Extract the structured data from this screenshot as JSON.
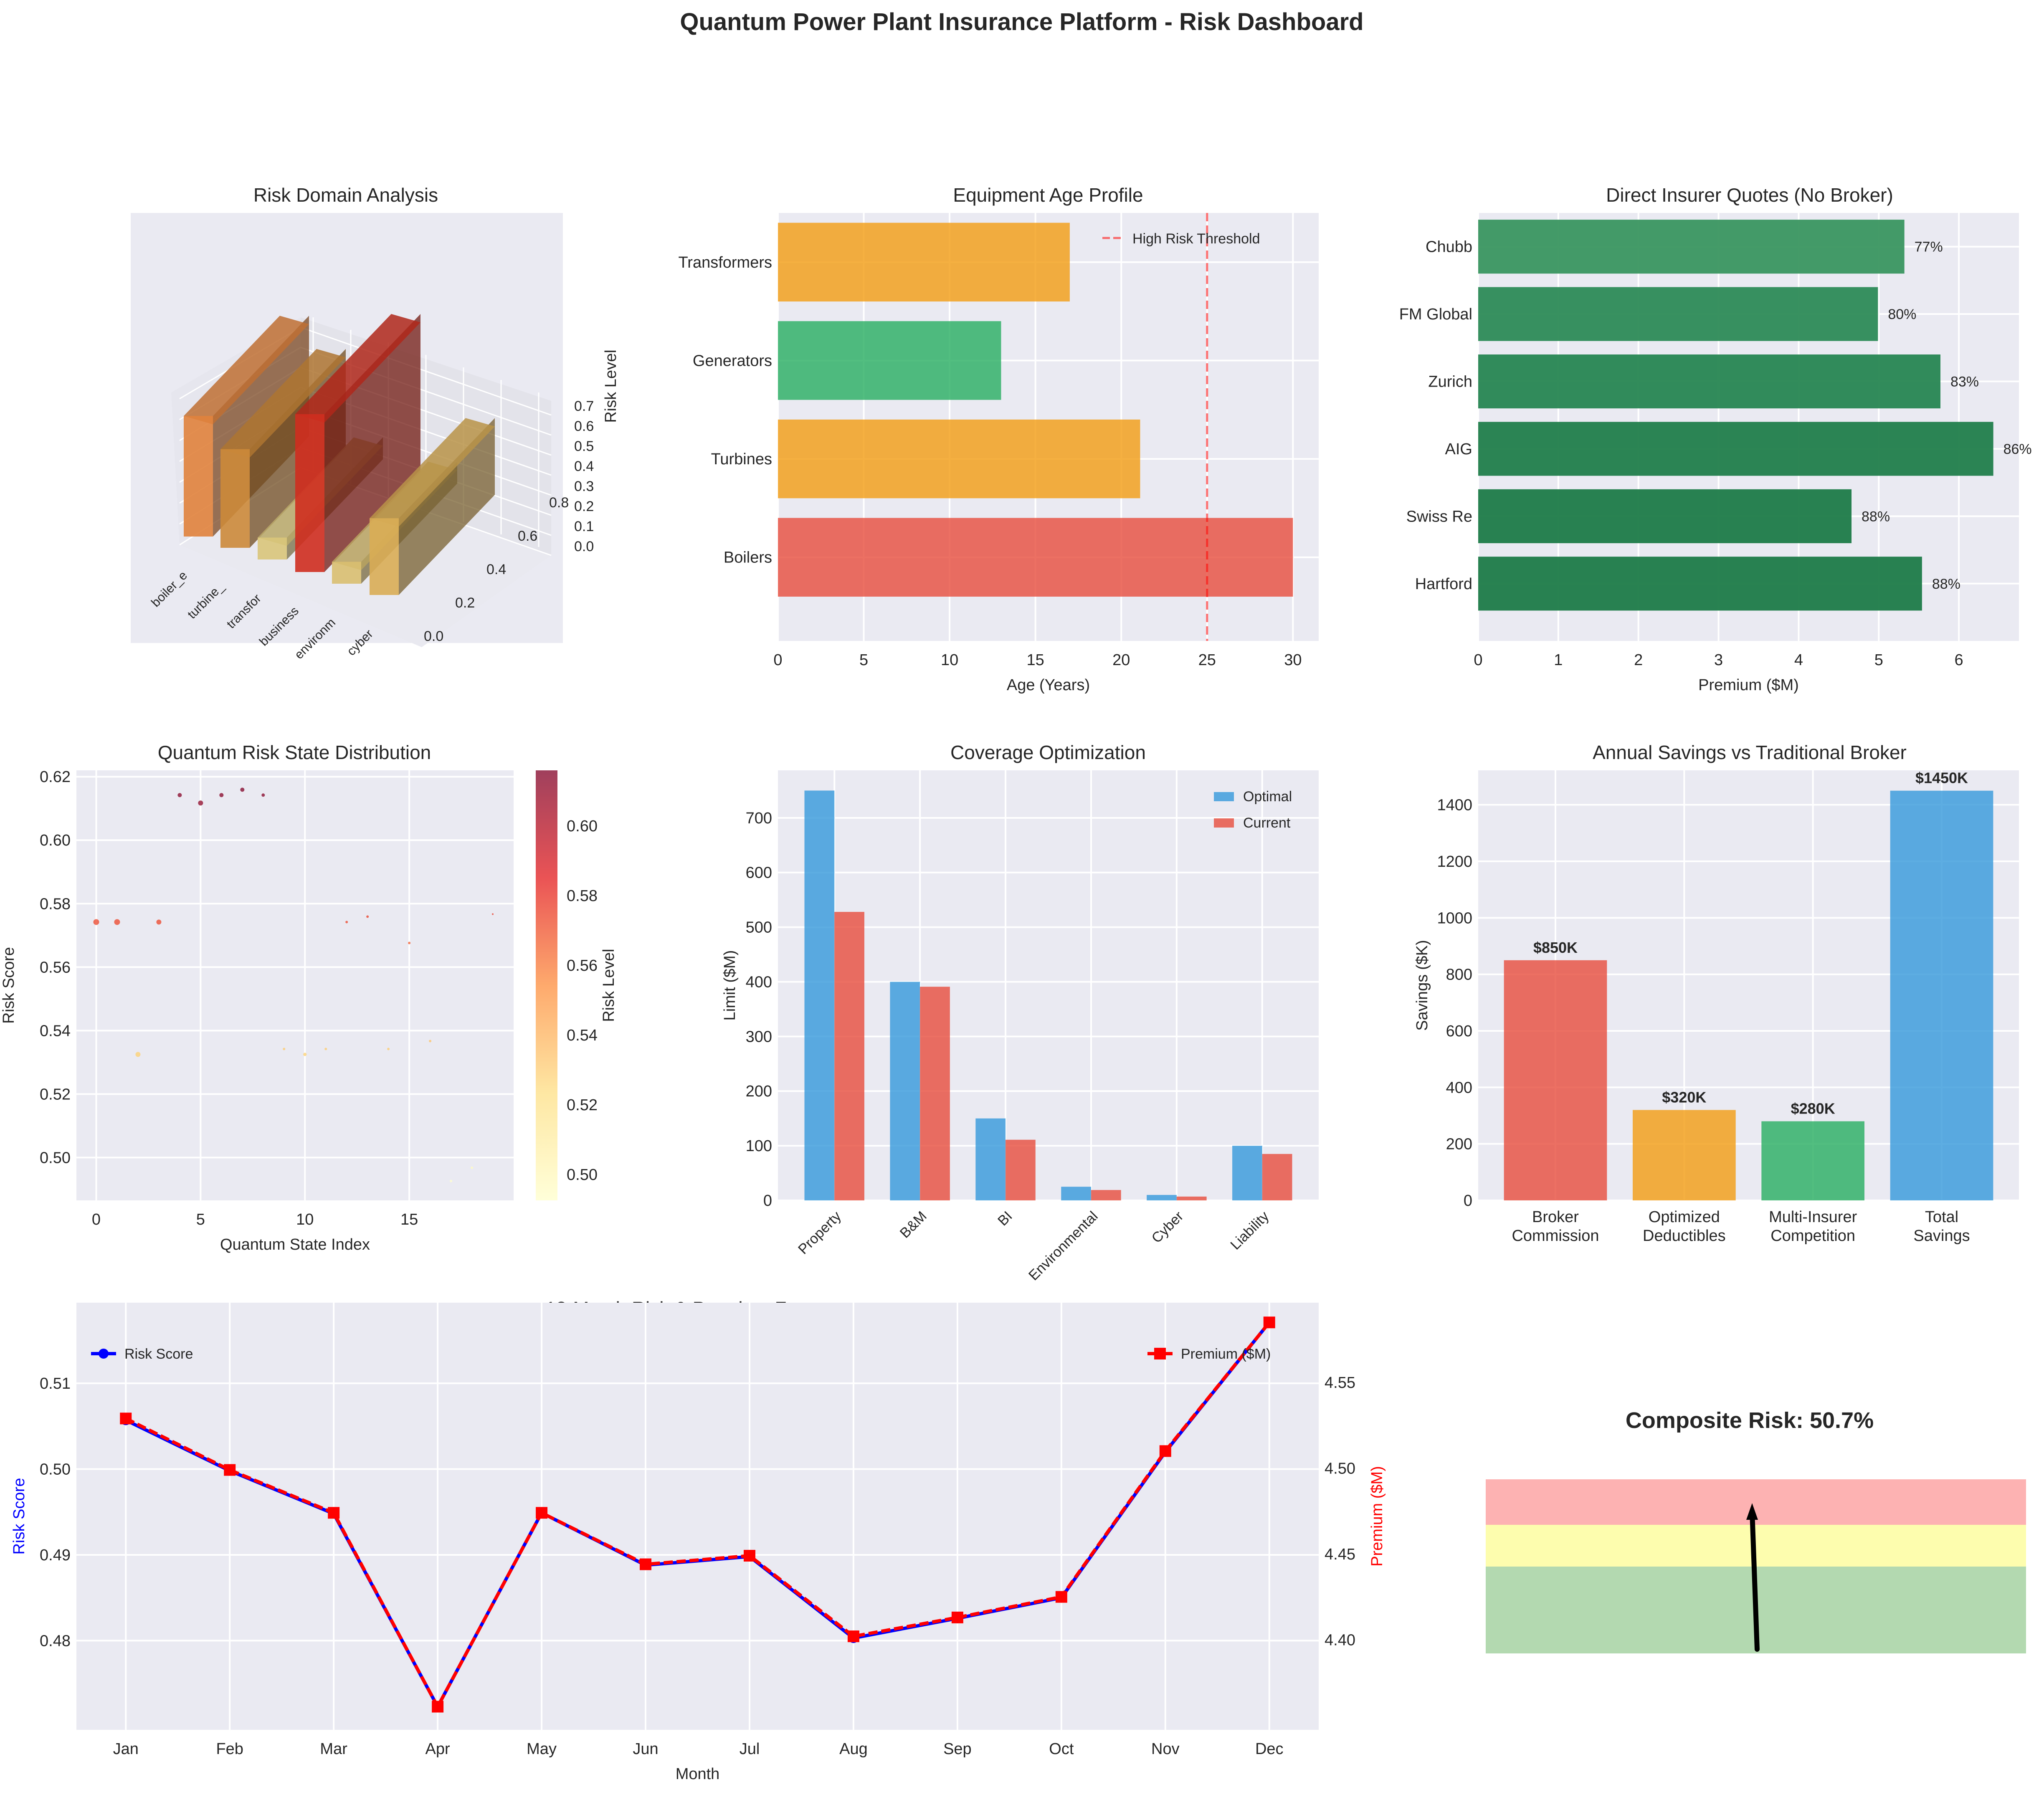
{
  "title": "Quantum Power Plant Insurance Platform - Risk Dashboard",
  "chart_data": [
    {
      "id": "risk_domain",
      "type": "bar3d",
      "title": "Risk Domain Analysis",
      "categories": [
        "boiler_e",
        "turbine_",
        "transfor",
        "business",
        "environm",
        "cyber"
      ],
      "values": [
        0.55,
        0.45,
        0.1,
        0.72,
        0.1,
        0.35
      ],
      "colors": [
        "#e0823c",
        "#cc8a3a",
        "#d9c57a",
        "#cf2e1f",
        "#d9bf70",
        "#d9ad55"
      ],
      "zlabel": "Risk Level",
      "z_ticks": [
        "0.0",
        "0.1",
        "0.2",
        "0.3",
        "0.4",
        "0.5",
        "0.6",
        "0.7"
      ],
      "y_ticks": [
        "0.0",
        "0.2",
        "0.4",
        "0.6",
        "0.8"
      ]
    },
    {
      "id": "equipment_age",
      "type": "bar",
      "orientation": "horizontal",
      "title": "Equipment Age Profile",
      "categories": [
        "Boilers",
        "Turbines",
        "Generators",
        "Transformers"
      ],
      "values": [
        30,
        21.1,
        13,
        17
      ],
      "colors": [
        "#e74c3c",
        "#f39c12",
        "#27ae60",
        "#f39c12"
      ],
      "xlabel": "Age (Years)",
      "xlim": [
        0,
        31.5
      ],
      "x_ticks": [
        0,
        5,
        10,
        15,
        20,
        25,
        30
      ],
      "threshold": {
        "value": 25,
        "label": "High Risk Threshold",
        "color": "#ff0000"
      },
      "legend": "top-right"
    },
    {
      "id": "insurer_quotes",
      "type": "bar",
      "orientation": "horizontal",
      "title": "Direct Insurer Quotes (No Broker)",
      "categories": [
        "Hartford",
        "Swiss Re",
        "AIG",
        "Zurich",
        "FM Global",
        "Chubb"
      ],
      "values": [
        5.54,
        4.66,
        6.43,
        5.77,
        4.99,
        5.32
      ],
      "labels": [
        "88%",
        "88%",
        "86%",
        "83%",
        "80%",
        "77%"
      ],
      "colors": [
        "#1e7b48",
        "#1e7b48",
        "#217e4b",
        "#278652",
        "#2d8b57",
        "#3a9660"
      ],
      "xlabel": "Premium ($M)",
      "xlim": [
        0,
        6.75
      ],
      "x_ticks": [
        0,
        1,
        2,
        3,
        4,
        5,
        6
      ]
    },
    {
      "id": "quantum_states",
      "type": "scatter",
      "title": "Quantum Risk State Distribution",
      "x": [
        0,
        1,
        2,
        3,
        4,
        5,
        6,
        7,
        8,
        9,
        10,
        11,
        12,
        13,
        14,
        15,
        16,
        17,
        18,
        19
      ],
      "y": [
        0.5742,
        0.5742,
        0.5325,
        0.5742,
        0.6142,
        0.6117,
        0.6142,
        0.6159,
        0.6142,
        0.5342,
        0.5325,
        0.5342,
        0.5742,
        0.5759,
        0.5342,
        0.5676,
        0.5367,
        0.4926,
        0.4968,
        0.5767
      ],
      "sizes": [
        7,
        7,
        6,
        6,
        5,
        6,
        5,
        5,
        4,
        3,
        4,
        3,
        3,
        3,
        3,
        3,
        3,
        3,
        3,
        2
      ],
      "xlabel": "Quantum State Index",
      "ylabel": "Risk Score",
      "xlim": [
        -0.95,
        20
      ],
      "ylim": [
        0.4865,
        0.622
      ],
      "x_ticks": [
        0,
        5,
        10,
        15
      ],
      "y_ticks": [
        "0.50",
        "0.52",
        "0.54",
        "0.56",
        "0.58",
        "0.60",
        "0.62"
      ],
      "colorbar": {
        "label": "Risk Level",
        "min": 0.4926,
        "max": 0.6159,
        "ticks": [
          "0.50",
          "0.52",
          "0.54",
          "0.56",
          "0.58",
          "0.60"
        ]
      }
    },
    {
      "id": "coverage",
      "type": "bar",
      "title": "Coverage Optimization",
      "categories": [
        "Property",
        "B&M",
        "BI",
        "Environmental",
        "Cyber",
        "Liability"
      ],
      "series": [
        {
          "name": "Optimal",
          "values": [
            750,
            400,
            150,
            25,
            10,
            100
          ],
          "color": "#3498db"
        },
        {
          "name": "Current",
          "values": [
            528,
            391,
            111,
            19,
            7,
            85
          ],
          "color": "#e74c3c"
        }
      ],
      "ylabel": "Limit ($M)",
      "ylim": [
        0,
        787
      ],
      "y_ticks": [
        0,
        100,
        200,
        300,
        400,
        500,
        600,
        700
      ],
      "legend": "top-right"
    },
    {
      "id": "savings",
      "type": "bar",
      "title": "Annual Savings vs Traditional Broker",
      "categories": [
        "Broker\nCommission",
        "Optimized\nDeductibles",
        "Multi-Insurer\nCompetition",
        "Total\nSavings"
      ],
      "values": [
        850,
        320,
        280,
        1450
      ],
      "labels": [
        "$850K",
        "$320K",
        "$280K",
        "$1450K"
      ],
      "colors": [
        "#e74c3c",
        "#f39c12",
        "#27ae60",
        "#3498db"
      ],
      "ylabel": "Savings ($K)",
      "ylim": [
        0,
        1522
      ],
      "y_ticks": [
        0,
        200,
        400,
        600,
        800,
        1000,
        1200,
        1400
      ]
    },
    {
      "id": "forecast",
      "type": "line",
      "title": "12-Month Risk & Premium Forecast",
      "categories": [
        "Jan",
        "Feb",
        "Mar",
        "Apr",
        "May",
        "Jun",
        "Jul",
        "Aug",
        "Sep",
        "Oct",
        "Nov",
        "Dec"
      ],
      "series": [
        {
          "name": "Risk Score",
          "axis": "left",
          "color": "#0000ff",
          "marker": "circle",
          "values": [
            0.5057,
            0.4998,
            0.4948,
            0.4723,
            0.4949,
            0.4888,
            0.4898,
            0.4803,
            0.4826,
            0.485,
            0.502,
            0.5171
          ]
        },
        {
          "name": "Premium ($M)",
          "axis": "right",
          "color": "#ff0000",
          "marker": "square",
          "style": "dashed",
          "values": [
            4.529,
            4.499,
            4.474,
            4.361,
            4.474,
            4.444,
            4.449,
            4.402,
            4.413,
            4.425,
            4.51,
            4.585
          ]
        }
      ],
      "xlabel": "Month",
      "ylabel_left": "Risk Score",
      "ylabel_right": "Premium ($M)",
      "ylim_left": [
        0.4696,
        0.5194
      ],
      "ylim_right": [
        4.3475,
        4.5965
      ],
      "y_ticks_left": [
        "0.48",
        "0.49",
        "0.50",
        "0.51"
      ],
      "y_ticks_right": [
        "4.40",
        "4.45",
        "4.50",
        "4.55"
      ],
      "legend_left": "top-left",
      "legend_right": "top-right"
    },
    {
      "id": "composite_gauge",
      "type": "gauge",
      "title": "Composite Risk: 50.7%",
      "value": 0.507,
      "zones": [
        {
          "name": "low",
          "from": 0,
          "to": 0.5,
          "color": "#b3d9b0"
        },
        {
          "name": "medium",
          "from": 0.5,
          "to": 0.75,
          "color": "#fdfdae"
        },
        {
          "name": "high",
          "from": 0.75,
          "to": 1.0,
          "color": "#fdb2b2"
        }
      ]
    }
  ]
}
